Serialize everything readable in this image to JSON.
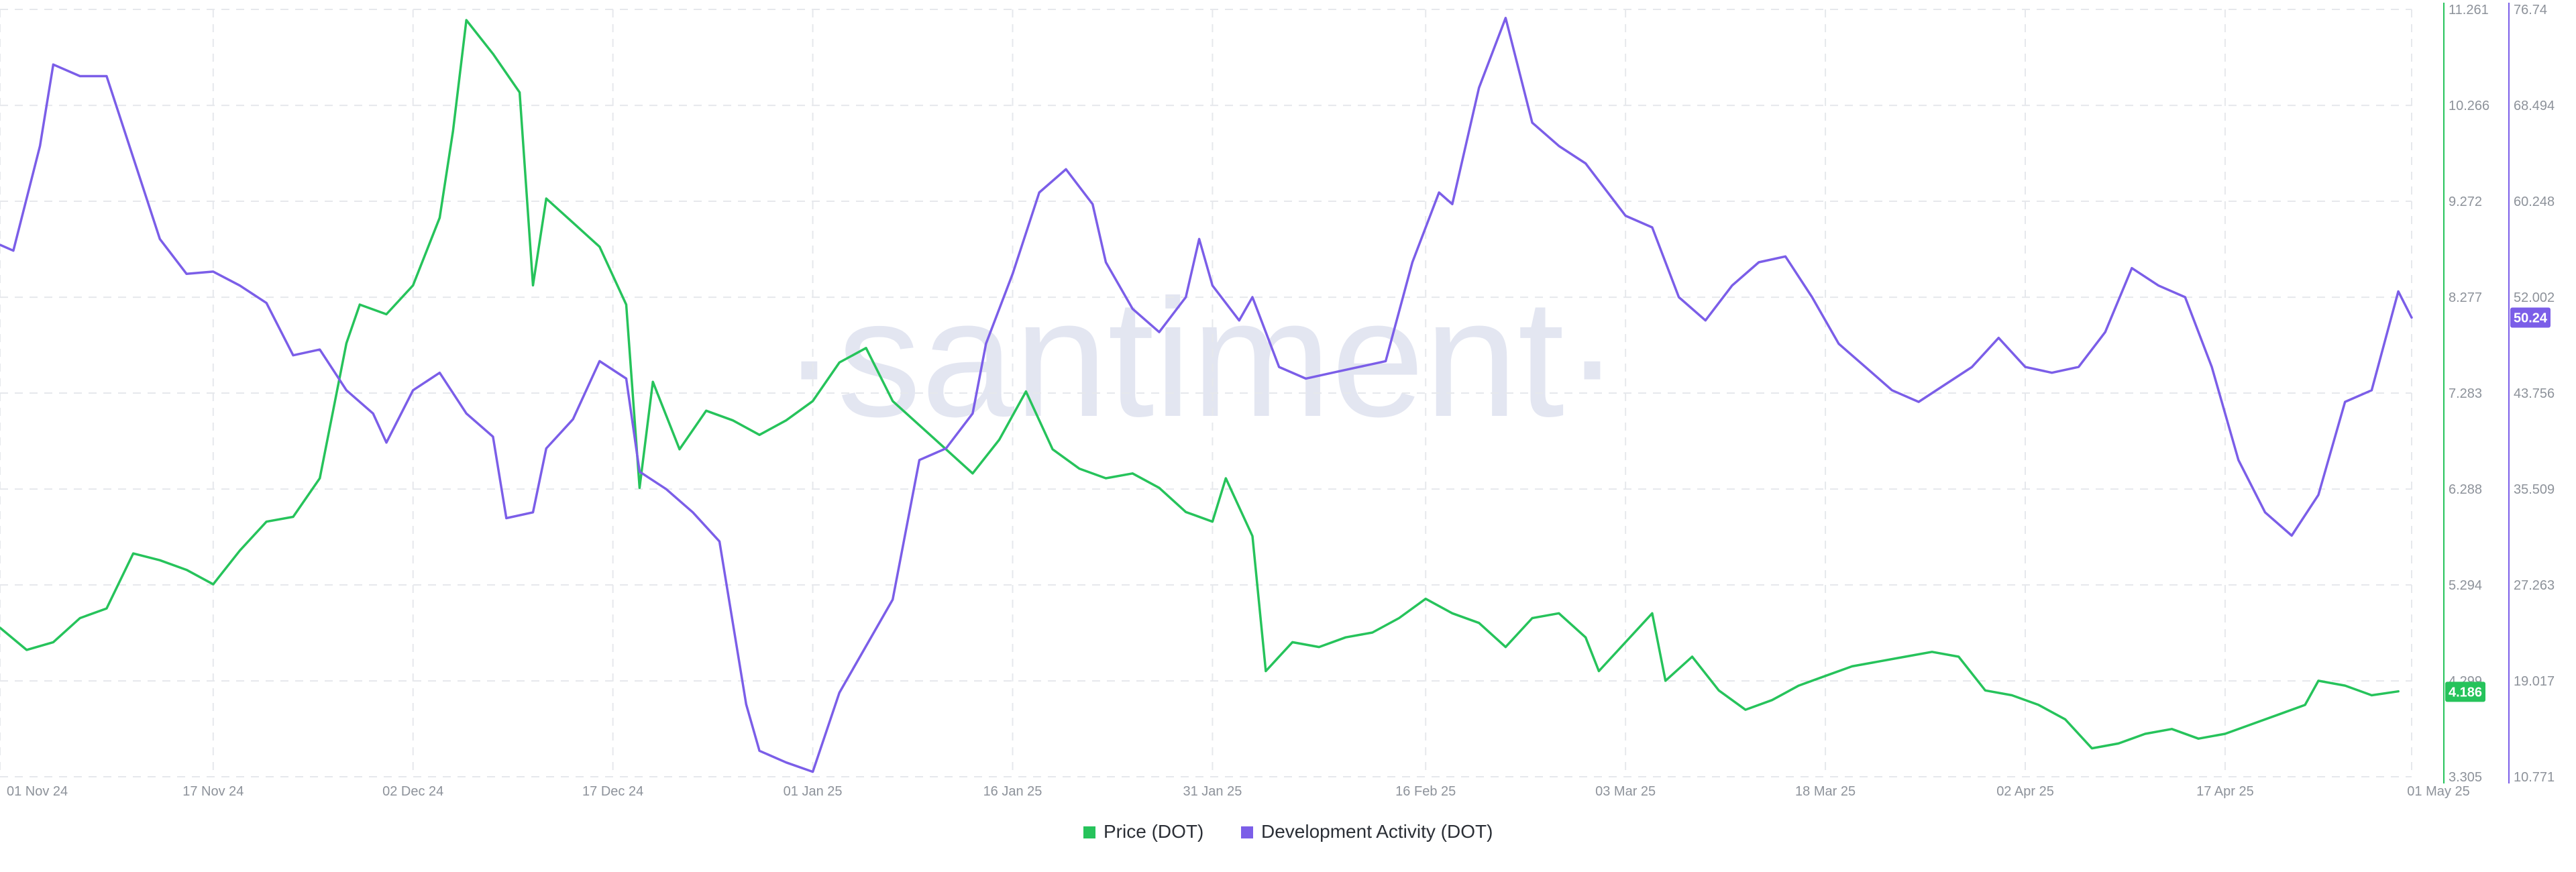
{
  "chart_data": {
    "type": "line",
    "watermark": "·santiment·",
    "x_dates": [
      "01 Nov 24",
      "17 Nov 24",
      "02 Dec 24",
      "17 Dec 24",
      "01 Jan 25",
      "16 Jan 25",
      "31 Jan 25",
      "16 Feb 25",
      "03 Mar 25",
      "18 Mar 25",
      "02 Apr 25",
      "17 Apr 25",
      "01 May 25"
    ],
    "series": [
      {
        "name": "Price (DOT)",
        "color": "#26c35b",
        "axis": "right-inner",
        "ylim": [
          3.305,
          11.261
        ],
        "ticks": [
          "3.305",
          "4.299",
          "5.294",
          "6.288",
          "7.283",
          "8.277",
          "9.272",
          "10.266",
          "11.261"
        ],
        "last_value": "4.186",
        "points": [
          [
            "01 Nov 24",
            4.85
          ],
          [
            "03 Nov 24",
            4.62
          ],
          [
            "05 Nov 24",
            4.7
          ],
          [
            "07 Nov 24",
            4.95
          ],
          [
            "09 Nov 24",
            5.05
          ],
          [
            "11 Nov 24",
            5.62
          ],
          [
            "13 Nov 24",
            5.55
          ],
          [
            "15 Nov 24",
            5.45
          ],
          [
            "17 Nov 24",
            5.3
          ],
          [
            "19 Nov 24",
            5.65
          ],
          [
            "21 Nov 24",
            5.95
          ],
          [
            "23 Nov 24",
            6.0
          ],
          [
            "25 Nov 24",
            6.4
          ],
          [
            "27 Nov 24",
            7.8
          ],
          [
            "28 Nov 24",
            8.2
          ],
          [
            "30 Nov 24",
            8.1
          ],
          [
            "02 Dec 24",
            8.4
          ],
          [
            "04 Dec 24",
            9.1
          ],
          [
            "05 Dec 24",
            10.0
          ],
          [
            "06 Dec 24",
            11.15
          ],
          [
            "08 Dec 24",
            10.8
          ],
          [
            "10 Dec 24",
            10.4
          ],
          [
            "11 Dec 24",
            8.4
          ],
          [
            "12 Dec 24",
            9.3
          ],
          [
            "14 Dec 24",
            9.05
          ],
          [
            "16 Dec 24",
            8.8
          ],
          [
            "18 Dec 24",
            8.2
          ],
          [
            "19 Dec 24",
            6.3
          ],
          [
            "20 Dec 24",
            7.4
          ],
          [
            "22 Dec 24",
            6.7
          ],
          [
            "24 Dec 24",
            7.1
          ],
          [
            "26 Dec 24",
            7.0
          ],
          [
            "28 Dec 24",
            6.85
          ],
          [
            "30 Dec 24",
            7.0
          ],
          [
            "01 Jan 25",
            7.2
          ],
          [
            "03 Jan 25",
            7.6
          ],
          [
            "05 Jan 25",
            7.75
          ],
          [
            "07 Jan 25",
            7.2
          ],
          [
            "09 Jan 25",
            6.95
          ],
          [
            "11 Jan 25",
            6.7
          ],
          [
            "13 Jan 25",
            6.45
          ],
          [
            "15 Jan 25",
            6.8
          ],
          [
            "17 Jan 25",
            7.3
          ],
          [
            "19 Jan 25",
            6.7
          ],
          [
            "21 Jan 25",
            6.5
          ],
          [
            "23 Jan 25",
            6.4
          ],
          [
            "25 Jan 25",
            6.45
          ],
          [
            "27 Jan 25",
            6.3
          ],
          [
            "29 Jan 25",
            6.05
          ],
          [
            "31 Jan 25",
            5.95
          ],
          [
            "01 Feb 25",
            6.4
          ],
          [
            "03 Feb 25",
            5.8
          ],
          [
            "04 Feb 25",
            4.4
          ],
          [
            "06 Feb 25",
            4.7
          ],
          [
            "08 Feb 25",
            4.65
          ],
          [
            "10 Feb 25",
            4.75
          ],
          [
            "12 Feb 25",
            4.8
          ],
          [
            "14 Feb 25",
            4.95
          ],
          [
            "16 Feb 25",
            5.15
          ],
          [
            "18 Feb 25",
            5.0
          ],
          [
            "20 Feb 25",
            4.9
          ],
          [
            "22 Feb 25",
            4.65
          ],
          [
            "24 Feb 25",
            4.95
          ],
          [
            "26 Feb 25",
            5.0
          ],
          [
            "28 Feb 25",
            4.75
          ],
          [
            "01 Mar 25",
            4.4
          ],
          [
            "03 Mar 25",
            4.7
          ],
          [
            "05 Mar 25",
            5.0
          ],
          [
            "06 Mar 25",
            4.3
          ],
          [
            "08 Mar 25",
            4.55
          ],
          [
            "10 Mar 25",
            4.2
          ],
          [
            "12 Mar 25",
            4.0
          ],
          [
            "14 Mar 25",
            4.1
          ],
          [
            "16 Mar 25",
            4.25
          ],
          [
            "18 Mar 25",
            4.35
          ],
          [
            "20 Mar 25",
            4.45
          ],
          [
            "22 Mar 25",
            4.5
          ],
          [
            "24 Mar 25",
            4.55
          ],
          [
            "26 Mar 25",
            4.6
          ],
          [
            "28 Mar 25",
            4.55
          ],
          [
            "30 Mar 25",
            4.2
          ],
          [
            "01 Apr 25",
            4.15
          ],
          [
            "03 Apr 25",
            4.05
          ],
          [
            "05 Apr 25",
            3.9
          ],
          [
            "07 Apr 25",
            3.6
          ],
          [
            "09 Apr 25",
            3.65
          ],
          [
            "11 Apr 25",
            3.75
          ],
          [
            "13 Apr 25",
            3.8
          ],
          [
            "15 Apr 25",
            3.7
          ],
          [
            "17 Apr 25",
            3.75
          ],
          [
            "19 Apr 25",
            3.85
          ],
          [
            "21 Apr 25",
            3.95
          ],
          [
            "23 Apr 25",
            4.05
          ],
          [
            "24 Apr 25",
            4.3
          ],
          [
            "26 Apr 25",
            4.25
          ],
          [
            "28 Apr 25",
            4.15
          ],
          [
            "30 Apr 25",
            4.19
          ]
        ]
      },
      {
        "name": "Development Activity (DOT)",
        "color": "#7b5ee8",
        "axis": "right-outer",
        "ylim": [
          10.771,
          76.74
        ],
        "ticks": [
          "10.771",
          "19.017",
          "27.263",
          "35.509",
          "43.756",
          "52.002",
          "60.248",
          "68.494",
          "76.74"
        ],
        "last_value": "50.24",
        "points": [
          [
            "01 Nov 24",
            56.5
          ],
          [
            "02 Nov 24",
            56.0
          ],
          [
            "04 Nov 24",
            65.0
          ],
          [
            "05 Nov 24",
            72.0
          ],
          [
            "07 Nov 24",
            71.0
          ],
          [
            "09 Nov 24",
            71.0
          ],
          [
            "11 Nov 24",
            64.0
          ],
          [
            "13 Nov 24",
            57.0
          ],
          [
            "15 Nov 24",
            54.0
          ],
          [
            "17 Nov 24",
            54.2
          ],
          [
            "19 Nov 24",
            53.0
          ],
          [
            "21 Nov 24",
            51.5
          ],
          [
            "23 Nov 24",
            47.0
          ],
          [
            "25 Nov 24",
            47.5
          ],
          [
            "27 Nov 24",
            44.0
          ],
          [
            "29 Nov 24",
            42.0
          ],
          [
            "30 Nov 24",
            39.5
          ],
          [
            "02 Dec 24",
            44.0
          ],
          [
            "04 Dec 24",
            45.5
          ],
          [
            "06 Dec 24",
            42.0
          ],
          [
            "08 Dec 24",
            40.0
          ],
          [
            "09 Dec 24",
            33.0
          ],
          [
            "11 Dec 24",
            33.5
          ],
          [
            "12 Dec 24",
            39.0
          ],
          [
            "14 Dec 24",
            41.5
          ],
          [
            "16 Dec 24",
            46.5
          ],
          [
            "18 Dec 24",
            45.0
          ],
          [
            "19 Dec 24",
            37.0
          ],
          [
            "21 Dec 24",
            35.5
          ],
          [
            "23 Dec 24",
            33.5
          ],
          [
            "25 Dec 24",
            31.0
          ],
          [
            "26 Dec 24",
            24.0
          ],
          [
            "27 Dec 24",
            17.0
          ],
          [
            "28 Dec 24",
            13.0
          ],
          [
            "30 Dec 24",
            12.0
          ],
          [
            "01 Jan 25",
            11.2
          ],
          [
            "03 Jan 25",
            18.0
          ],
          [
            "05 Jan 25",
            22.0
          ],
          [
            "07 Jan 25",
            26.0
          ],
          [
            "09 Jan 25",
            38.0
          ],
          [
            "11 Jan 25",
            39.0
          ],
          [
            "13 Jan 25",
            42.0
          ],
          [
            "14 Jan 25",
            48.0
          ],
          [
            "16 Jan 25",
            54.0
          ],
          [
            "18 Jan 25",
            61.0
          ],
          [
            "20 Jan 25",
            63.0
          ],
          [
            "22 Jan 25",
            60.0
          ],
          [
            "23 Jan 25",
            55.0
          ],
          [
            "25 Jan 25",
            51.0
          ],
          [
            "27 Jan 25",
            49.0
          ],
          [
            "29 Jan 25",
            52.0
          ],
          [
            "30 Jan 25",
            57.0
          ],
          [
            "31 Jan 25",
            53.0
          ],
          [
            "02 Feb 25",
            50.0
          ],
          [
            "03 Feb 25",
            52.0
          ],
          [
            "05 Feb 25",
            46.0
          ],
          [
            "07 Feb 25",
            45.0
          ],
          [
            "09 Feb 25",
            45.5
          ],
          [
            "11 Feb 25",
            46.0
          ],
          [
            "13 Feb 25",
            46.5
          ],
          [
            "15 Feb 25",
            55.0
          ],
          [
            "17 Feb 25",
            61.0
          ],
          [
            "18 Feb 25",
            60.0
          ],
          [
            "20 Feb 25",
            70.0
          ],
          [
            "22 Feb 25",
            76.0
          ],
          [
            "24 Feb 25",
            67.0
          ],
          [
            "26 Feb 25",
            65.0
          ],
          [
            "28 Feb 25",
            63.5
          ],
          [
            "01 Mar 25",
            62.0
          ],
          [
            "03 Mar 25",
            59.0
          ],
          [
            "05 Mar 25",
            58.0
          ],
          [
            "07 Mar 25",
            52.0
          ],
          [
            "09 Mar 25",
            50.0
          ],
          [
            "11 Mar 25",
            53.0
          ],
          [
            "13 Mar 25",
            55.0
          ],
          [
            "15 Mar 25",
            55.5
          ],
          [
            "17 Mar 25",
            52.0
          ],
          [
            "19 Mar 25",
            48.0
          ],
          [
            "21 Mar 25",
            46.0
          ],
          [
            "23 Mar 25",
            44.0
          ],
          [
            "25 Mar 25",
            43.0
          ],
          [
            "27 Mar 25",
            44.5
          ],
          [
            "29 Mar 25",
            46.0
          ],
          [
            "31 Mar 25",
            48.5
          ],
          [
            "02 Apr 25",
            46.0
          ],
          [
            "04 Apr 25",
            45.5
          ],
          [
            "06 Apr 25",
            46.0
          ],
          [
            "08 Apr 25",
            49.0
          ],
          [
            "10 Apr 25",
            54.5
          ],
          [
            "12 Apr 25",
            53.0
          ],
          [
            "14 Apr 25",
            52.0
          ],
          [
            "16 Apr 25",
            46.0
          ],
          [
            "18 Apr 25",
            38.0
          ],
          [
            "20 Apr 25",
            33.5
          ],
          [
            "22 Apr 25",
            31.5
          ],
          [
            "24 Apr 25",
            35.0
          ],
          [
            "26 Apr 25",
            43.0
          ],
          [
            "28 Apr 25",
            44.0
          ],
          [
            "30 Apr 25",
            52.5
          ],
          [
            "01 May 25",
            50.24
          ]
        ]
      }
    ],
    "grid": true,
    "legend": "bottom-center"
  }
}
